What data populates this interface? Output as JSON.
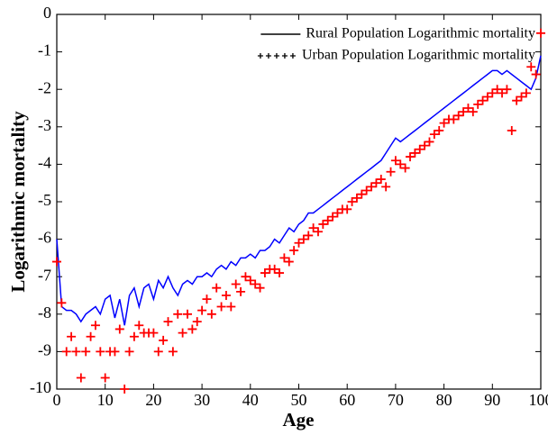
{
  "chart_data": {
    "type": "line",
    "x_label": "Age",
    "y_label": "Logarithmic mortality",
    "x": [
      0,
      1,
      2,
      3,
      4,
      5,
      6,
      7,
      8,
      9,
      10,
      11,
      12,
      13,
      14,
      15,
      16,
      17,
      18,
      19,
      20,
      21,
      22,
      23,
      24,
      25,
      26,
      27,
      28,
      29,
      30,
      31,
      32,
      33,
      34,
      35,
      36,
      37,
      38,
      39,
      40,
      41,
      42,
      43,
      44,
      45,
      46,
      47,
      48,
      49,
      50,
      51,
      52,
      53,
      54,
      55,
      56,
      57,
      58,
      59,
      60,
      61,
      62,
      63,
      64,
      65,
      66,
      67,
      68,
      69,
      70,
      71,
      72,
      73,
      74,
      75,
      76,
      77,
      78,
      79,
      80,
      81,
      82,
      83,
      84,
      85,
      86,
      87,
      88,
      89,
      90,
      91,
      92,
      93,
      94,
      95,
      96,
      97,
      98,
      99,
      100
    ],
    "series": [
      {
        "name": "Rural Population Logarithmic mortality",
        "color": "#0000ff",
        "marker": "line",
        "values": [
          -6.0,
          -7.8,
          -7.9,
          -7.9,
          -8.0,
          -8.2,
          -8.0,
          -7.9,
          -7.8,
          -8.0,
          -7.6,
          -7.5,
          -8.1,
          -7.6,
          -8.3,
          -7.5,
          -7.3,
          -7.8,
          -7.3,
          -7.2,
          -7.6,
          -7.1,
          -7.3,
          -7.0,
          -7.3,
          -7.5,
          -7.2,
          -7.1,
          -7.2,
          -7.0,
          -7.0,
          -6.9,
          -7.0,
          -6.8,
          -6.7,
          -6.8,
          -6.6,
          -6.7,
          -6.5,
          -6.5,
          -6.4,
          -6.5,
          -6.3,
          -6.3,
          -6.2,
          -6.0,
          -6.1,
          -5.9,
          -5.7,
          -5.8,
          -5.6,
          -5.5,
          -5.3,
          -5.3,
          -5.2,
          -5.1,
          -5.0,
          -4.9,
          -4.8,
          -4.7,
          -4.6,
          -4.5,
          -4.4,
          -4.3,
          -4.2,
          -4.1,
          -4.0,
          -3.9,
          -3.7,
          -3.5,
          -3.3,
          -3.4,
          -3.3,
          -3.2,
          -3.1,
          -3.0,
          -2.9,
          -2.8,
          -2.7,
          -2.6,
          -2.5,
          -2.4,
          -2.3,
          -2.2,
          -2.1,
          -2.0,
          -1.9,
          -1.8,
          -1.7,
          -1.6,
          -1.5,
          -1.5,
          -1.6,
          -1.5,
          -1.6,
          -1.7,
          -1.8,
          -1.9,
          -2.0,
          -1.7,
          -1.1
        ]
      },
      {
        "name": "Urban Population Logarithmic mortality",
        "color": "#ff0000",
        "marker": "plus",
        "values": [
          -6.6,
          -7.7,
          -9.0,
          -8.6,
          -9.0,
          -9.7,
          -9.0,
          -8.6,
          -8.3,
          -9.0,
          -9.7,
          -9.0,
          -9.0,
          -8.4,
          -10.0,
          -9.0,
          -8.6,
          -8.3,
          -8.5,
          -8.5,
          -8.5,
          -9.0,
          -8.7,
          -8.2,
          -9.0,
          -8.0,
          -8.5,
          -8.0,
          -8.4,
          -8.2,
          -7.9,
          -7.6,
          -8.0,
          -7.3,
          -7.8,
          -7.5,
          -7.8,
          -7.2,
          -7.4,
          -7.0,
          -7.1,
          -7.2,
          -7.3,
          -6.9,
          -6.8,
          -6.8,
          -6.9,
          -6.5,
          -6.6,
          -6.3,
          -6.1,
          -6.0,
          -5.9,
          -5.7,
          -5.8,
          -5.6,
          -5.5,
          -5.4,
          -5.3,
          -5.2,
          -5.2,
          -5.0,
          -4.9,
          -4.8,
          -4.7,
          -4.6,
          -4.5,
          -4.4,
          -4.6,
          -4.2,
          -3.9,
          -4.0,
          -4.1,
          -3.8,
          -3.7,
          -3.6,
          -3.5,
          -3.4,
          -3.2,
          -3.1,
          -2.9,
          -2.8,
          -2.8,
          -2.7,
          -2.6,
          -2.5,
          -2.6,
          -2.4,
          -2.3,
          -2.2,
          -2.1,
          -2.0,
          -2.1,
          -2.0,
          -3.1,
          -2.3,
          -2.2,
          -2.1,
          -1.4,
          -1.6,
          -0.5
        ]
      }
    ],
    "xlim": [
      0,
      100
    ],
    "ylim": [
      -10,
      0
    ],
    "xticks": [
      0,
      10,
      20,
      30,
      40,
      50,
      60,
      70,
      80,
      90,
      100
    ],
    "yticks": [
      0,
      -1,
      -2,
      -3,
      -4,
      -5,
      -6,
      -7,
      -8,
      -9,
      -10
    ],
    "legend": "upper right"
  }
}
